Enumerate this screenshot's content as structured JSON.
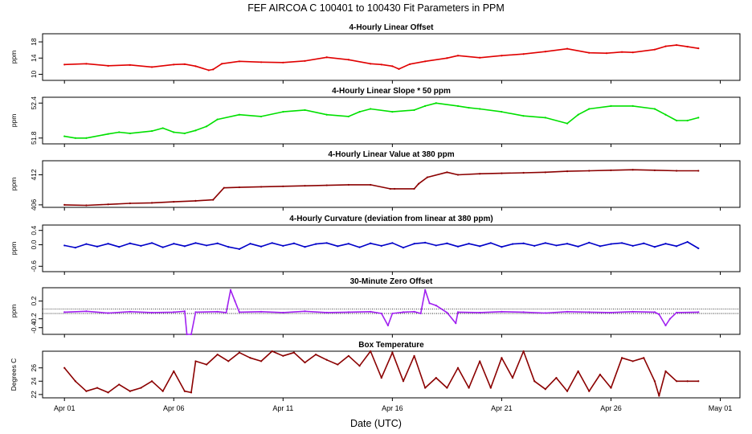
{
  "figure": {
    "title": "FEF   AIRCOA C   100401 to 100430   Fit Parameters in PPM",
    "xlabel": "Date (UTC)"
  },
  "chart_data": [
    {
      "type": "line",
      "title": "4-Hourly Linear Offset",
      "ylabel": "ppm",
      "color": "#e00000",
      "ylim": [
        8.5,
        20
      ],
      "yticks": [
        "10",
        "14",
        "18"
      ],
      "ytick_values": [
        10,
        14,
        18
      ],
      "hlines": [],
      "x": [
        1,
        2,
        3,
        4,
        5,
        6,
        6.5,
        7,
        7.6,
        7.8,
        8.2,
        9,
        10,
        11,
        12,
        13,
        14,
        15,
        15.5,
        16,
        16.3,
        16.8,
        17.5,
        18.5,
        19,
        20,
        21,
        22,
        23,
        24,
        25,
        25.8,
        26.5,
        27,
        28,
        28.5,
        29,
        29.5,
        30
      ],
      "values": [
        12.4,
        12.6,
        12.1,
        12.3,
        11.8,
        12.4,
        12.5,
        12.0,
        11.0,
        11.2,
        12.6,
        13.2,
        13.0,
        12.9,
        13.3,
        14.2,
        13.6,
        12.6,
        12.4,
        12.0,
        11.3,
        12.5,
        13.2,
        14.0,
        14.6,
        14.1,
        14.6,
        15.0,
        15.6,
        16.3,
        15.3,
        15.2,
        15.5,
        15.4,
        16.1,
        16.9,
        17.2,
        16.8,
        16.4
      ]
    },
    {
      "type": "line",
      "title": "4-Hourly Linear Slope * 50 ppm",
      "ylabel": "ppm",
      "color": "#00e000",
      "ylim": [
        51.7,
        52.5
      ],
      "yticks": [
        "51.8",
        "52.4"
      ],
      "ytick_values": [
        51.8,
        52.4
      ],
      "hlines": [],
      "x": [
        1,
        1.5,
        2,
        3,
        3.5,
        4,
        5,
        5.5,
        6,
        6.5,
        7,
        7.5,
        8,
        9,
        10,
        11,
        12,
        13,
        14,
        14.5,
        15,
        16,
        17,
        17.5,
        18,
        19,
        19.5,
        20,
        21,
        22,
        23,
        24,
        24.5,
        25,
        26,
        27,
        28,
        28.5,
        29,
        29.5,
        30
      ],
      "values": [
        51.83,
        51.8,
        51.8,
        51.87,
        51.9,
        51.88,
        51.92,
        51.97,
        51.9,
        51.88,
        51.93,
        52.0,
        52.12,
        52.2,
        52.17,
        52.25,
        52.28,
        52.2,
        52.17,
        52.25,
        52.3,
        52.25,
        52.28,
        52.35,
        52.4,
        52.35,
        52.32,
        52.3,
        52.25,
        52.18,
        52.15,
        52.05,
        52.2,
        52.3,
        52.35,
        52.35,
        52.3,
        52.2,
        52.1,
        52.1,
        52.15
      ]
    },
    {
      "type": "line",
      "title": "4-Hourly Linear Value at 380 ppm",
      "ylabel": "ppm",
      "color": "#8b0000",
      "ylim": [
        405.5,
        414.8
      ],
      "yticks": [
        "406",
        "412"
      ],
      "ytick_values": [
        406,
        412
      ],
      "hlines": [],
      "x": [
        1,
        2,
        3,
        4,
        5,
        6,
        7,
        7.8,
        8.3,
        9,
        10,
        11,
        12,
        13,
        14,
        15,
        15.9,
        16.1,
        17,
        17.2,
        17.6,
        18.5,
        19,
        20,
        21,
        22,
        23,
        24,
        25,
        26,
        27,
        28,
        29,
        30
      ],
      "values": [
        406.0,
        405.9,
        406.1,
        406.3,
        406.4,
        406.6,
        406.8,
        407.0,
        409.4,
        409.5,
        409.6,
        409.7,
        409.8,
        409.9,
        410.0,
        410.0,
        409.2,
        409.2,
        409.2,
        410.2,
        411.5,
        412.5,
        412.0,
        412.2,
        412.3,
        412.4,
        412.5,
        412.7,
        412.8,
        412.9,
        413.0,
        412.9,
        412.8,
        412.8
      ]
    },
    {
      "type": "line",
      "title": "4-Hourly Curvature (deviation from linear at 380 ppm)",
      "ylabel": "ppm",
      "color": "#0000c8",
      "ylim": [
        -0.75,
        0.55
      ],
      "yticks": [
        "-0.6",
        "0.0",
        "0.4"
      ],
      "ytick_values": [
        -0.6,
        0.0,
        0.4
      ],
      "hlines": [],
      "x": [
        1,
        1.5,
        2,
        2.5,
        3,
        3.5,
        4,
        4.5,
        5,
        5.5,
        6,
        6.5,
        7,
        7.5,
        8,
        8.5,
        9,
        9.5,
        10,
        10.5,
        11,
        11.5,
        12,
        12.5,
        13,
        13.5,
        14,
        14.5,
        15,
        15.5,
        16,
        16.5,
        17,
        17.5,
        18,
        18.5,
        19,
        19.5,
        20,
        20.5,
        21,
        21.5,
        22,
        22.5,
        23,
        23.5,
        24,
        24.5,
        25,
        25.5,
        26,
        26.5,
        27,
        27.5,
        28,
        28.5,
        29,
        29.5,
        30
      ],
      "values": [
        -0.02,
        -0.08,
        0.02,
        -0.05,
        0.03,
        -0.06,
        0.04,
        -0.03,
        0.05,
        -0.07,
        0.03,
        -0.04,
        0.05,
        -0.02,
        0.04,
        -0.06,
        -0.12,
        0.03,
        -0.05,
        0.05,
        -0.03,
        0.04,
        -0.06,
        0.02,
        0.05,
        -0.04,
        0.03,
        -0.07,
        0.04,
        -0.03,
        0.05,
        -0.08,
        0.03,
        0.06,
        -0.02,
        0.04,
        -0.05,
        0.03,
        -0.04,
        0.05,
        -0.06,
        0.02,
        0.04,
        -0.03,
        0.05,
        -0.02,
        0.03,
        -0.05,
        0.06,
        -0.04,
        0.02,
        0.05,
        -0.03,
        0.04,
        -0.06,
        0.03,
        -0.04,
        0.08,
        -0.1
      ]
    },
    {
      "type": "line",
      "title": "30-Minute Zero Offset",
      "ylabel": "ppm",
      "color": "#a020f0",
      "ylim": [
        -0.55,
        0.5
      ],
      "yticks": [
        "-0.4",
        "-0.2",
        "0.2"
      ],
      "ytick_values": [
        -0.4,
        -0.2,
        0.2
      ],
      "hlines": [
        0.02,
        -0.08
      ],
      "x": [
        1,
        2,
        3,
        4,
        5,
        6,
        6.5,
        6.6,
        6.8,
        7,
        8,
        8.4,
        8.6,
        8.8,
        9,
        10,
        11,
        12,
        13,
        14,
        15,
        15.5,
        15.8,
        16,
        16.5,
        17,
        17.3,
        17.5,
        17.7,
        18,
        18.5,
        18.9,
        19,
        20,
        21,
        22,
        23,
        24,
        25,
        26,
        27,
        28,
        28.2,
        28.5,
        28.7,
        29,
        30
      ],
      "values": [
        -0.05,
        -0.03,
        -0.07,
        -0.04,
        -0.06,
        -0.05,
        -0.03,
        -0.55,
        -0.55,
        -0.05,
        -0.04,
        -0.06,
        0.45,
        0.2,
        -0.05,
        -0.04,
        -0.06,
        -0.03,
        -0.06,
        -0.05,
        -0.04,
        -0.08,
        -0.35,
        -0.08,
        -0.05,
        -0.04,
        -0.08,
        0.45,
        0.15,
        0.1,
        -0.06,
        -0.3,
        -0.05,
        -0.06,
        -0.04,
        -0.05,
        -0.07,
        -0.04,
        -0.05,
        -0.06,
        -0.04,
        -0.05,
        -0.1,
        -0.35,
        -0.2,
        -0.06,
        -0.05
      ]
    },
    {
      "type": "line",
      "title": "Box Temperature",
      "ylabel": "Degrees C",
      "color": "#8b0000",
      "ylim": [
        21.5,
        28.5
      ],
      "yticks": [
        "22",
        "24",
        "26"
      ],
      "ytick_values": [
        22,
        24,
        26
      ],
      "hlines": [],
      "x": [
        1,
        1.5,
        2,
        2.5,
        3,
        3.5,
        4,
        4.5,
        5,
        5.5,
        6,
        6.5,
        6.8,
        7,
        7.5,
        8,
        8.5,
        9,
        9.5,
        10,
        10.5,
        11,
        11.5,
        12,
        12.5,
        13,
        13.5,
        14,
        14.5,
        15,
        15.5,
        16,
        16.5,
        17,
        17.5,
        18,
        18.5,
        19,
        19.5,
        20,
        20.5,
        21,
        21.5,
        22,
        22.5,
        23,
        23.5,
        24,
        24.5,
        25,
        25.5,
        26,
        26.5,
        27,
        27.5,
        28,
        28.2,
        28.5,
        29,
        29.5,
        30
      ],
      "values": [
        26.0,
        24.0,
        22.5,
        23.0,
        22.3,
        23.5,
        22.5,
        23.0,
        24.0,
        22.5,
        25.5,
        22.5,
        22.3,
        27.0,
        26.5,
        28.0,
        27.0,
        28.3,
        27.5,
        27.0,
        28.5,
        27.8,
        28.3,
        26.8,
        28.0,
        27.2,
        26.5,
        27.8,
        26.3,
        28.5,
        24.5,
        28.3,
        24.0,
        27.8,
        23.0,
        24.5,
        23.0,
        26.0,
        23.0,
        27.0,
        23.0,
        27.5,
        24.5,
        28.5,
        24.0,
        22.8,
        24.5,
        22.5,
        25.5,
        22.5,
        25.0,
        23.0,
        27.5,
        27.0,
        27.5,
        24.0,
        21.8,
        25.5,
        24.0,
        24.0,
        24.0
      ]
    }
  ],
  "xaxis": {
    "ticks": [
      "Apr 01",
      "Apr 06",
      "Apr 11",
      "Apr 16",
      "Apr 21",
      "Apr 26",
      "May 01"
    ],
    "tick_days": [
      1,
      6,
      11,
      16,
      21,
      26,
      31
    ],
    "xlim": [
      0,
      31.9
    ]
  }
}
